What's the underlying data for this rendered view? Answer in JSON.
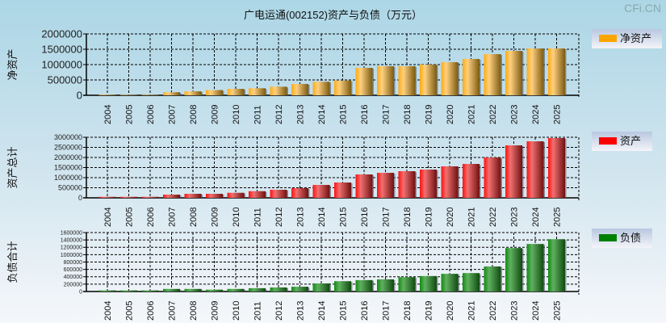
{
  "title": "广电运通(002152)资产与负债（万元）",
  "watermark": "CFi.CN",
  "chart_data": [
    {
      "type": "bar",
      "ylabel": "净资产",
      "legend": "净资产",
      "color": "#ffa500",
      "ylim": [
        0,
        2000000
      ],
      "ytick_step": 500000,
      "categories": [
        "2004",
        "2005",
        "2006",
        "2007",
        "2008",
        "2009",
        "2010",
        "2011",
        "2012",
        "2013",
        "2014",
        "2015",
        "2016",
        "2017",
        "2018",
        "2019",
        "2020",
        "2021",
        "2022",
        "2023",
        "2024",
        "2025"
      ],
      "values": [
        20000,
        15000,
        15000,
        100000,
        130000,
        170000,
        210000,
        230000,
        280000,
        370000,
        440000,
        480000,
        895000,
        947000,
        947000,
        1000000,
        1079000,
        1184000,
        1342000,
        1447000,
        1526000,
        1526000
      ]
    },
    {
      "type": "bar",
      "ylabel": "资产总计",
      "legend": "资产",
      "color": "#ff0000",
      "ylim": [
        0,
        3000000
      ],
      "ytick_step": 500000,
      "categories": [
        "2004",
        "2005",
        "2006",
        "2007",
        "2008",
        "2009",
        "2010",
        "2011",
        "2012",
        "2013",
        "2014",
        "2015",
        "2016",
        "2017",
        "2018",
        "2019",
        "2020",
        "2021",
        "2022",
        "2023",
        "2024",
        "2025"
      ],
      "values": [
        50000,
        50000,
        50000,
        160000,
        200000,
        200000,
        250000,
        330000,
        400000,
        480000,
        640000,
        760000,
        1160000,
        1240000,
        1320000,
        1400000,
        1560000,
        1680000,
        2000000,
        2600000,
        2800000,
        2960000
      ]
    },
    {
      "type": "bar",
      "ylabel": "负债合计",
      "legend": "负债",
      "color": "#008000",
      "ylim": [
        0,
        1600000
      ],
      "ytick_step": 200000,
      "categories": [
        "2004",
        "2005",
        "2006",
        "2007",
        "2008",
        "2009",
        "2010",
        "2011",
        "2012",
        "2013",
        "2014",
        "2015",
        "2016",
        "2017",
        "2018",
        "2019",
        "2020",
        "2021",
        "2022",
        "2023",
        "2024",
        "2025"
      ],
      "values": [
        30000,
        30000,
        30000,
        70000,
        70000,
        50000,
        70000,
        90000,
        110000,
        130000,
        220000,
        280000,
        310000,
        330000,
        390000,
        420000,
        480000,
        500000,
        680000,
        1180000,
        1290000,
        1420000
      ]
    }
  ]
}
